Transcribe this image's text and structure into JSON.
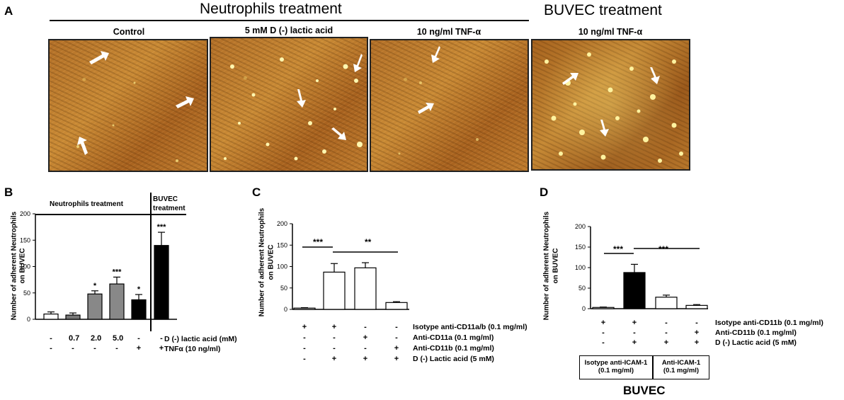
{
  "panel_a": {
    "label": "A",
    "neutrophils_title": "Neutrophils treatment",
    "buvec_title": "BUVEC treatment",
    "images": [
      {
        "title": "Control"
      },
      {
        "title": "5 mM D (-) lactic acid"
      },
      {
        "title": "10 ng/ml TNF-α"
      },
      {
        "title": "10 ng/ml TNF-α"
      }
    ]
  },
  "panel_b": {
    "label": "B",
    "header_left": "Neutrophils treatment",
    "header_right_1": "BUVEC",
    "header_right_2": "treatment",
    "ylabel_1": "Number of adherent Neutrophils",
    "ylabel_2": "on BUVEC",
    "row1_label": "D (-) lactic acid (mM)",
    "row2_label": "TNFα (10 ng/ml)",
    "row1": [
      "-",
      "0.7",
      "2.0",
      "5.0",
      "-",
      "-"
    ],
    "row2": [
      "-",
      "-",
      "-",
      "-",
      "+",
      "+"
    ]
  },
  "panel_c": {
    "label": "C",
    "ylabel_1": "Number of adherent Neutrophils",
    "ylabel_2": "on BUVEC",
    "sig1": "***",
    "sig2": "**",
    "rows": [
      {
        "label": "Isotype anti-CD11a/b (0.1 mg/ml)",
        "signs": [
          "+",
          "+",
          "-",
          "-"
        ]
      },
      {
        "label": "Anti-CD11a (0.1 mg/ml)",
        "signs": [
          "-",
          "-",
          "+",
          "-"
        ]
      },
      {
        "label": "Anti-CD11b (0.1 mg/ml)",
        "signs": [
          "-",
          "-",
          "-",
          "+"
        ]
      },
      {
        "label": "D (-) Lactic acid (5 mM)",
        "signs": [
          "-",
          "+",
          "+",
          "+"
        ]
      }
    ]
  },
  "panel_d": {
    "label": "D",
    "ylabel_1": "Number of adherent Neutrophils",
    "ylabel_2": "on BUVEC",
    "sig1": "***",
    "sig2": "***",
    "rows": [
      {
        "label": "Isotype anti-CD11b (0.1 mg/ml)",
        "signs": [
          "+",
          "+",
          "-",
          "-"
        ]
      },
      {
        "label": "Anti-CD11b (0.1 mg/ml)",
        "signs": [
          "-",
          "-",
          "-",
          "+"
        ]
      },
      {
        "label": "D (-) Lactic acid (5 mM)",
        "signs": [
          "-",
          "+",
          "+",
          "+"
        ]
      }
    ],
    "box1_1": "Isotype anti-ICAM-1",
    "box1_2": "(0.1 mg/ml)",
    "box2_1": "Anti-ICAM-1",
    "box2_2": "(0.1 mg/ml)",
    "buvec": "BUVEC"
  },
  "chart_data": [
    {
      "type": "bar",
      "panel": "B",
      "categories": [
        "1",
        "2",
        "3",
        "4",
        "5",
        "6"
      ],
      "values": [
        10,
        8,
        48,
        67,
        37,
        140
      ],
      "errors": [
        4,
        4,
        6,
        13,
        10,
        25
      ],
      "significance": [
        "",
        "",
        "*",
        "***",
        "*",
        "***"
      ],
      "fills": [
        "#ffffff",
        "#777777",
        "#888888",
        "#888888",
        "#000000",
        "#000000"
      ],
      "ylim": [
        0,
        200
      ],
      "yticks": [
        0,
        50,
        100,
        150,
        200
      ]
    },
    {
      "type": "bar",
      "panel": "C",
      "categories": [
        "1",
        "2",
        "3",
        "4"
      ],
      "values": [
        3,
        87,
        97,
        16
      ],
      "errors": [
        1,
        20,
        12,
        2
      ],
      "fills": [
        "#ffffff",
        "#ffffff",
        "#ffffff",
        "#ffffff"
      ],
      "ylim": [
        0,
        200
      ],
      "yticks": [
        0,
        50,
        100,
        150,
        200
      ]
    },
    {
      "type": "bar",
      "panel": "D",
      "categories": [
        "1",
        "2",
        "3",
        "4"
      ],
      "values": [
        3,
        88,
        28,
        8
      ],
      "errors": [
        1,
        20,
        5,
        2
      ],
      "fills": [
        "#ffffff",
        "#000000",
        "#ffffff",
        "#ffffff"
      ],
      "ylim": [
        0,
        200
      ],
      "yticks": [
        0,
        50,
        100,
        150,
        200
      ]
    }
  ]
}
